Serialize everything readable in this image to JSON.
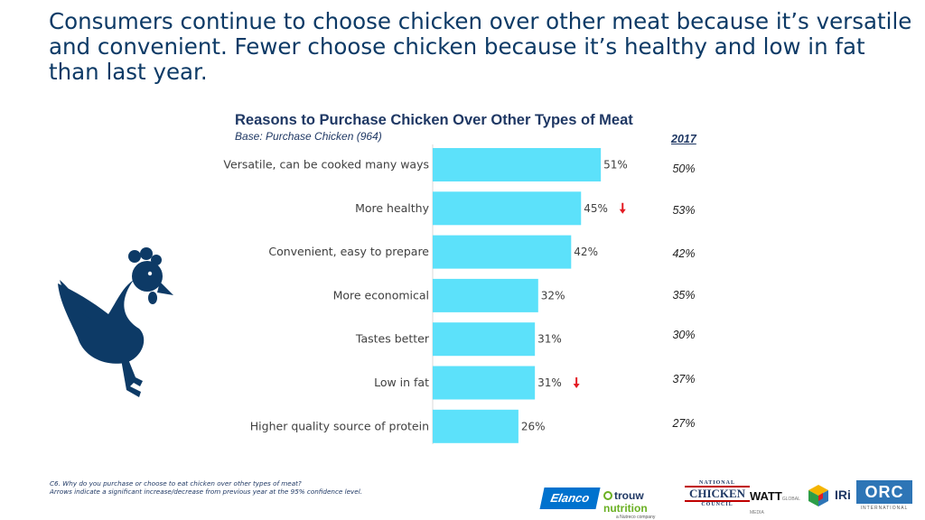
{
  "headline": "Consumers continue to choose chicken over other meat because it’s versatile and convenient.  Fewer choose chicken because it’s healthy and low in fat than last year.",
  "chart_data": {
    "type": "bar",
    "orientation": "horizontal",
    "title": "Reasons to Purchase Chicken Over Other Types of Meat",
    "subtitle": "Base: Purchase Chicken (964)",
    "categories": [
      "Versatile, can be cooked many ways",
      "More healthy",
      "Convenient, easy to prepare",
      "More economical",
      "Tastes better",
      "Low in fat",
      "Higher quality source of protein"
    ],
    "values": [
      51,
      45,
      42,
      32,
      31,
      31,
      26
    ],
    "value_labels": [
      "51%",
      "45%",
      "42%",
      "32%",
      "31%",
      "31%",
      "26%"
    ],
    "significant_decrease": [
      false,
      true,
      false,
      false,
      false,
      true,
      false
    ],
    "comparison": {
      "header": "2017",
      "labels": [
        "50%",
        "53%",
        "42%",
        "35%",
        "30%",
        "37%",
        "27%"
      ]
    },
    "bar_color": "#5ce1fa",
    "arrow_color": "#e31b23",
    "xlim": [
      0,
      100
    ]
  },
  "footnote": {
    "line1": "C6.  Why do you purchase or choose to eat chicken over other types of meat?",
    "line2": "Arrows indicate a significant increase/decrease from previous year at the 95% confidence level."
  },
  "logos": {
    "elanco": "Elanco",
    "trouw": "trouw",
    "trouw_nutrition": "nutrition",
    "trouw_sub": "a Nutreco company",
    "ncc_top": "NATIONAL",
    "ncc_main": "CHICKEN",
    "ncc_bottom": "COUNCIL",
    "watt": "WATT",
    "watt_media": "GLOBAL MEDIA",
    "iri": "IRi",
    "orc": "ORC",
    "orc_sub": "INTERNATIONAL"
  },
  "colors": {
    "headline": "#0d3a66",
    "chicken_icon": "#0d3a66"
  }
}
